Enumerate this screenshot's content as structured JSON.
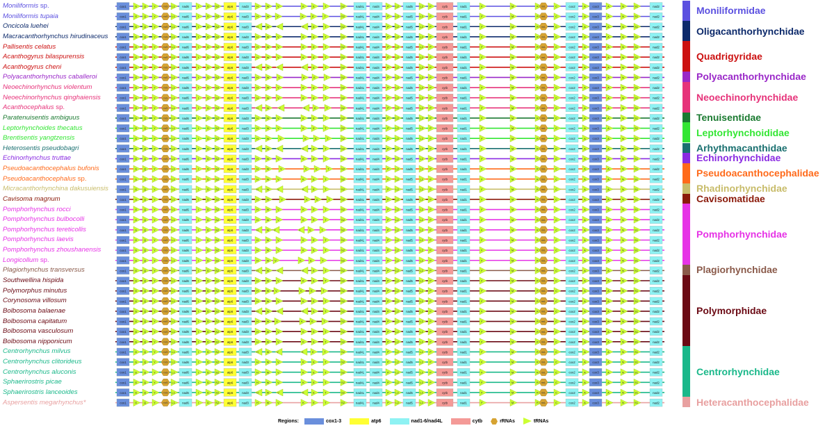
{
  "colors": {
    "cox": "#6a8fdc",
    "atp6": "#ffff33",
    "nad": "#8ef2f3",
    "cytb": "#f49a97",
    "rrna": "#d6a332",
    "trna": "#ccff33",
    "text_on_block": "#1a1a66"
  },
  "genes": {
    "cox1": "cox1",
    "nad6": "nad6",
    "atp6": "atp6",
    "nad3": "nad3",
    "nad4L": "nad4L",
    "nad4": "nad4",
    "nad5": "nad5",
    "cytb": "cytb",
    "nad1": "nad1",
    "cox2": "cox2",
    "cox3": "cox3",
    "nad2": "nad2",
    "rrnS": "rrnS",
    "rrnL": "rrnL"
  },
  "trna_labels": {
    "G": "G",
    "Q": "Q",
    "Y": "Y",
    "L1": "L1",
    "I": "I",
    "D": "D",
    "S2": "S2",
    "H": "H",
    "W": "W",
    "V": "V",
    "K": "K",
    "E": "E",
    "T": "T",
    "P": "P",
    "L2": "L2",
    "F": "F",
    "M": "M",
    "R": "R",
    "C": "C",
    "A": "A",
    "N": "N",
    "S1": "S1"
  },
  "species": [
    {
      "name": "Moniliformis sp.",
      "color": "#5b50e0",
      "line": "#5b50e0"
    },
    {
      "name": "Moniliformis tupaia",
      "color": "#5b50e0",
      "line": "#5b50e0"
    },
    {
      "name": "Oncicola luehei",
      "color": "#0d2a6b",
      "line": "#0d2a6b"
    },
    {
      "name": "Macracanthorhynchus hirudinaceus",
      "color": "#0d2a6b",
      "line": "#0d2a6b"
    },
    {
      "name": "Pallisentis celatus",
      "color": "#cc1111",
      "line": "#cc1111"
    },
    {
      "name": "Acanthogyrus bilaspurensis",
      "color": "#cc1111",
      "line": "#cc1111"
    },
    {
      "name": "Acanthogyrus cheni",
      "color": "#cc1111",
      "line": "#cc1111"
    },
    {
      "name": "Polyacanthorhynchus caballeroi",
      "color": "#9a28c8",
      "line": "#9a28c8"
    },
    {
      "name": "Neoechinorhynchus violentum",
      "color": "#e6337a",
      "line": "#e6337a"
    },
    {
      "name": "Neoechinorhynchus qinghaiensis",
      "color": "#e6337a",
      "line": "#e6337a"
    },
    {
      "name": "Acanthocephalus sp.",
      "color": "#e6337a",
      "line": "#e6337a"
    },
    {
      "name": "Paratenuisentis ambiguus",
      "color": "#1a7a30",
      "line": "#1a7a30"
    },
    {
      "name": "Leptorhynchoides thecatus",
      "color": "#33e633",
      "line": "#33e633"
    },
    {
      "name": "Brentisentis yangtzensis",
      "color": "#33e633",
      "line": "#33e633"
    },
    {
      "name": "Heterosentis pseudobagri",
      "color": "#1a7070",
      "line": "#1a7070"
    },
    {
      "name": "Echinorhynchus truttae",
      "color": "#8a2be2",
      "line": "#8a2be2"
    },
    {
      "name": "Pseudoacanthocephalus bufonis",
      "color": "#ff6a1a",
      "line": "#ff6a1a"
    },
    {
      "name": "Pseudoacanthocephalus sp.",
      "color": "#ff6a1a",
      "line": "#ff6a1a"
    },
    {
      "name": "Micracanthorhynchina dakusuiensis",
      "color": "#c8bc6a",
      "line": "#c8bc6a"
    },
    {
      "name": "Cavisoma magnum",
      "color": "#8b1a0a",
      "line": "#8b1a0a"
    },
    {
      "name": "Pomphorhynchus rocci",
      "color": "#e633e6",
      "line": "#e633e6"
    },
    {
      "name": "Pomphorhynchus bulbocolli",
      "color": "#e633e6",
      "line": "#e633e6"
    },
    {
      "name": "Pomphorhynchus tereticollis",
      "color": "#e633e6",
      "line": "#e633e6"
    },
    {
      "name": "Pomphorhynchus laevis",
      "color": "#e633e6",
      "line": "#e633e6"
    },
    {
      "name": "Pomphorhynchus zhoushanensis",
      "color": "#e633e6",
      "line": "#e633e6"
    },
    {
      "name": "Longicollum sp.",
      "color": "#e633e6",
      "line": "#e633e6"
    },
    {
      "name": "Plagiorhynchus transversus",
      "color": "#8a5a4a",
      "line": "#8a5a4a"
    },
    {
      "name": "Southwellina hispida",
      "color": "#6b0a14",
      "line": "#6b0a14"
    },
    {
      "name": "Polymorphus minutus",
      "color": "#6b0a14",
      "line": "#6b0a14"
    },
    {
      "name": "Corynosoma villosum",
      "color": "#6b0a14",
      "line": "#6b0a14"
    },
    {
      "name": "Bolbosoma balaenae",
      "color": "#6b0a14",
      "line": "#6b0a14"
    },
    {
      "name": "Bolbosoma capitatum",
      "color": "#6b0a14",
      "line": "#6b0a14"
    },
    {
      "name": "Bolbosoma vasculosum",
      "color": "#6b0a14",
      "line": "#6b0a14"
    },
    {
      "name": "Bolbosoma nipponicum",
      "color": "#6b0a14",
      "line": "#6b0a14"
    },
    {
      "name": "Centrorhynchus milvus",
      "color": "#1ab88a",
      "line": "#1ab88a"
    },
    {
      "name": "Centrorhynchus clitorideus",
      "color": "#1ab88a",
      "line": "#1ab88a"
    },
    {
      "name": "Centrorhynchus aluconis",
      "color": "#1ab88a",
      "line": "#1ab88a"
    },
    {
      "name": "Sphaerirostris picae",
      "color": "#1ab88a",
      "line": "#1ab88a"
    },
    {
      "name": "Sphaerirostris lanceoides",
      "color": "#1ab88a",
      "line": "#1ab88a"
    },
    {
      "name": "Aspersentis megarhynchus*",
      "color": "#e8a0a0",
      "line": "#e8a0a0"
    }
  ],
  "families": [
    {
      "name": "Moniliformidae",
      "color": "#5b50e0",
      "first": 0,
      "last": 1
    },
    {
      "name": "Oligacanthorhynchidae",
      "color": "#0d2a6b",
      "first": 2,
      "last": 3
    },
    {
      "name": "Quadrigyridae",
      "color": "#cc1111",
      "first": 4,
      "last": 6
    },
    {
      "name": "Polyacanthorhynchidae",
      "color": "#9a28c8",
      "first": 7,
      "last": 7
    },
    {
      "name": "Neoechinorhynchidae",
      "color": "#e6337a",
      "first": 8,
      "last": 10
    },
    {
      "name": "Tenuisentidae",
      "color": "#1a7a30",
      "first": 11,
      "last": 11
    },
    {
      "name": "Leptorhynchoididae",
      "color": "#33e633",
      "first": 12,
      "last": 13
    },
    {
      "name": "Arhythmacanthidae",
      "color": "#1a7070",
      "first": 14,
      "last": 14
    },
    {
      "name": "Echinorhynchidae",
      "color": "#8a2be2",
      "first": 15,
      "last": 15
    },
    {
      "name": "Pseudoacanthocephalidae",
      "color": "#ff6a1a",
      "first": 16,
      "last": 17
    },
    {
      "name": "Rhadinorhynchidae",
      "color": "#c8bc6a",
      "first": 18,
      "last": 18
    },
    {
      "name": "Cavisomatidae",
      "color": "#8b1a0a",
      "first": 19,
      "last": 19
    },
    {
      "name": "Pomphorhynchidae",
      "color": "#e633e6",
      "first": 20,
      "last": 25
    },
    {
      "name": "Plagiorhynchidae",
      "color": "#8a5a4a",
      "first": 26,
      "last": 26
    },
    {
      "name": "Polymorphidae",
      "color": "#6b0a14",
      "first": 27,
      "last": 33
    },
    {
      "name": "Centrorhynchidae",
      "color": "#1ab88a",
      "first": 34,
      "last": 38
    },
    {
      "name": "Heteracanthocephalidae",
      "color": "#e8a0a0",
      "first": 39,
      "last": 39
    }
  ],
  "legend": {
    "title": "Regions:",
    "items": [
      {
        "label": "cox1-3",
        "kind": "rect",
        "color": "#6a8fdc"
      },
      {
        "label": "atp6",
        "kind": "rect",
        "color": "#ffff33"
      },
      {
        "label": "nad1-6/nad4L",
        "kind": "rect",
        "color": "#8ef2f3"
      },
      {
        "label": "cytb",
        "kind": "rect",
        "color": "#f49a97"
      },
      {
        "label": "rRNAs",
        "kind": "hex",
        "color": "#d6a332"
      },
      {
        "label": "tRNAs",
        "kind": "tri",
        "color": "#ccff33"
      }
    ]
  }
}
